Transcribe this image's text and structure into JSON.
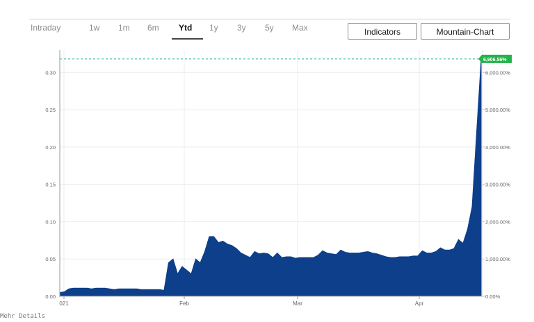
{
  "range_tabs": [
    {
      "label": "Intraday"
    },
    {
      "label": "1w"
    },
    {
      "label": "1m"
    },
    {
      "label": "6m"
    },
    {
      "label": "Ytd",
      "active": true
    },
    {
      "label": "1y"
    },
    {
      "label": "3y"
    },
    {
      "label": "5y"
    },
    {
      "label": "Max"
    }
  ],
  "buttons": {
    "indicators_label": "Indicators",
    "chart_type_label": "Mountain-Chart"
  },
  "footer_note": "Mehr Details",
  "colors": {
    "fill": "#0d3f8a",
    "last_value_badge": "#23b34a",
    "reference_line": "#2fb8a8",
    "grid": "#ececec"
  },
  "chart_data": {
    "type": "area",
    "x_ticks": [
      "021",
      "Feb",
      "Mar",
      "Apr"
    ],
    "y_left_ticks": [
      "0.00",
      "0.05",
      "0.10",
      "0.15",
      "0.20",
      "0.25",
      "0.30"
    ],
    "y_right_ticks": [
      "0.00%",
      "1,000.00%",
      "2,000.00%",
      "3,000.00%",
      "4,000.00%",
      "5,000.00%",
      "6,000.00%"
    ],
    "last_value_label": "6,906.56%",
    "ylim": [
      0,
      0.33
    ],
    "grid": true,
    "series": [
      {
        "values": [
          0.005,
          0.006,
          0.01,
          0.011,
          0.011,
          0.011,
          0.011,
          0.01,
          0.011,
          0.011,
          0.011,
          0.01,
          0.009,
          0.01,
          0.01,
          0.01,
          0.01,
          0.01,
          0.009,
          0.009,
          0.009,
          0.009,
          0.009,
          0.008,
          0.045,
          0.05,
          0.03,
          0.04,
          0.035,
          0.03,
          0.05,
          0.045,
          0.06,
          0.08,
          0.08,
          0.072,
          0.074,
          0.07,
          0.068,
          0.064,
          0.058,
          0.055,
          0.052,
          0.06,
          0.057,
          0.058,
          0.057,
          0.052,
          0.058,
          0.052,
          0.053,
          0.053,
          0.051,
          0.052,
          0.052,
          0.052,
          0.052,
          0.055,
          0.061,
          0.058,
          0.057,
          0.056,
          0.062,
          0.059,
          0.058,
          0.058,
          0.058,
          0.059,
          0.06,
          0.058,
          0.057,
          0.055,
          0.053,
          0.052,
          0.052,
          0.053,
          0.053,
          0.053,
          0.054,
          0.054,
          0.061,
          0.058,
          0.058,
          0.06,
          0.065,
          0.062,
          0.062,
          0.064,
          0.076,
          0.071,
          0.09,
          0.12,
          0.22,
          0.318
        ]
      }
    ]
  }
}
